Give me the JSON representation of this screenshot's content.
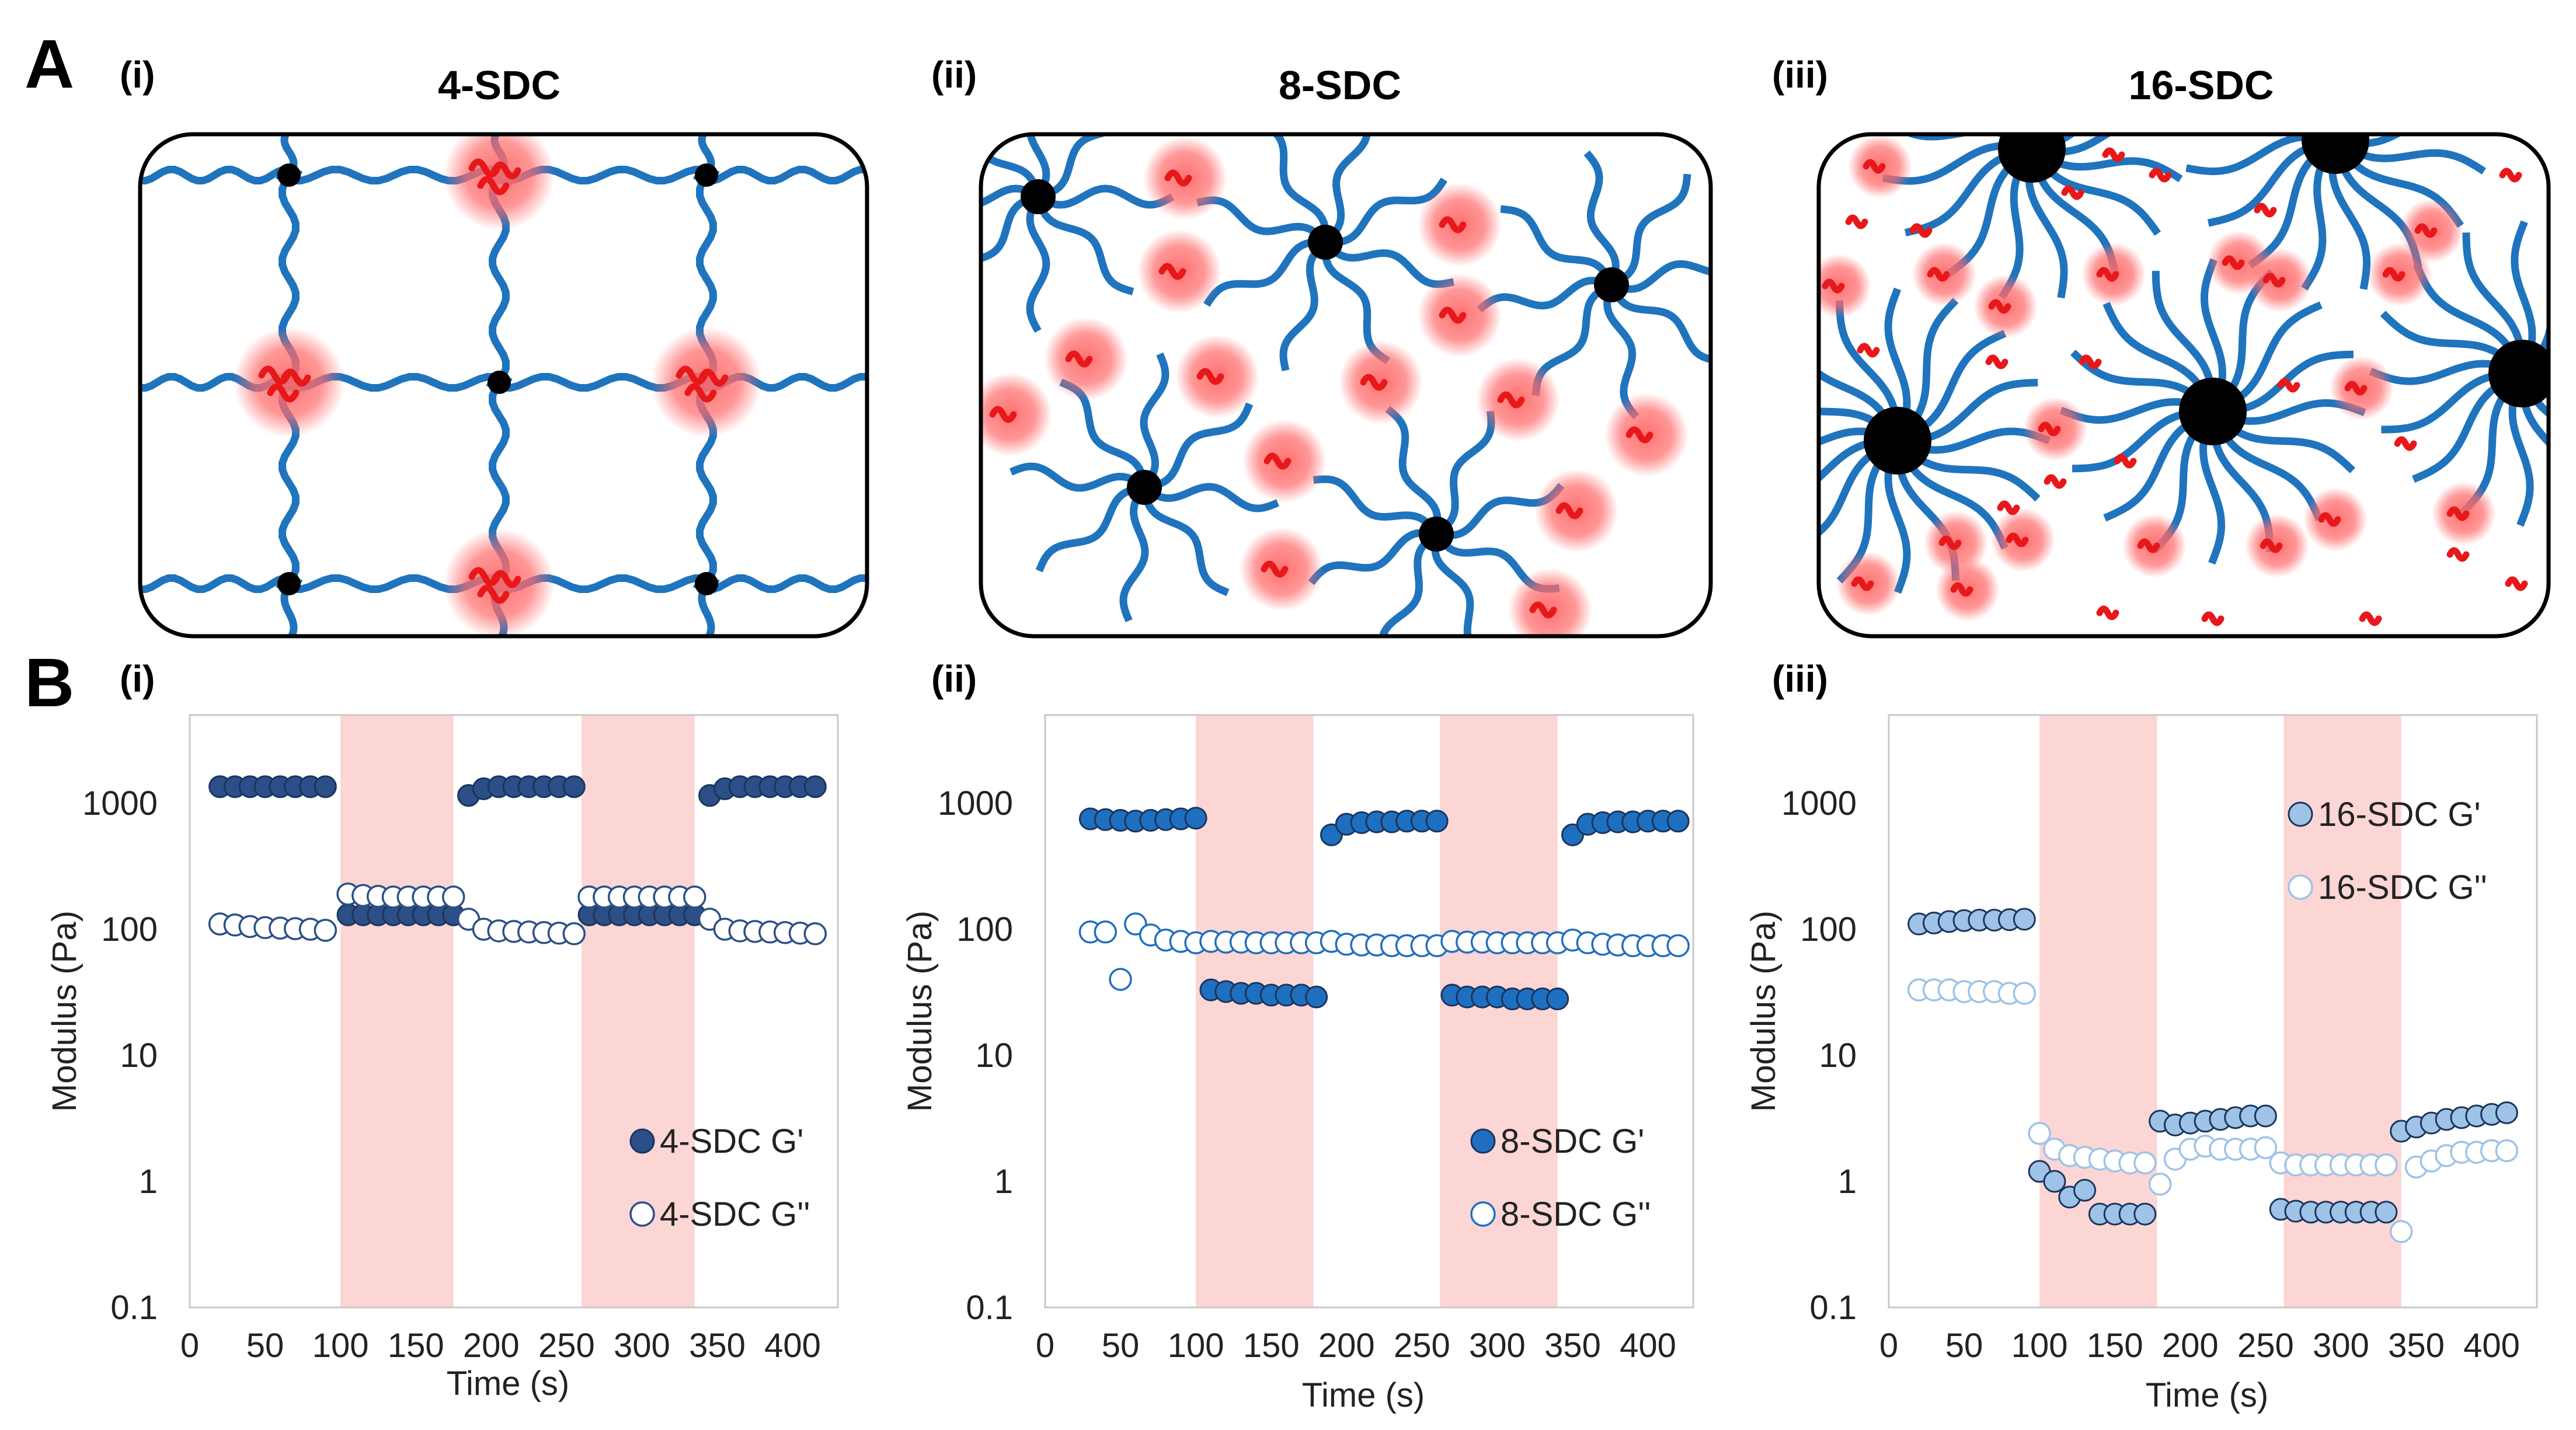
{
  "panels": {
    "A_label": "A",
    "B_label": "B",
    "sub_labels": [
      "(i)",
      "(ii)",
      "(iii)"
    ],
    "schematic_titles": [
      "4-SDC",
      "8-SDC",
      "16-SDC"
    ]
  },
  "colors": {
    "polymer": "#1f74bd",
    "junction": "#000000",
    "sticker": "#e8181a",
    "sticker_glow": "#ff6a6a",
    "shading": "#fcd5d5",
    "s4": "#2b4f86",
    "s8": "#1f6fc0",
    "s16": "#9ec3e6"
  },
  "chart_data": [
    {
      "type": "scatter",
      "title": "(i)",
      "xlabel": "Time (s)",
      "ylabel": "Modulus (Pa)",
      "xlim": [
        0,
        430
      ],
      "ylim": [
        0.1,
        5000
      ],
      "yscale": "log",
      "xticks": [
        "0",
        "50",
        "100",
        "150",
        "200",
        "250",
        "300",
        "350",
        "400"
      ],
      "yticks": [
        "0.1",
        "1",
        "10",
        "100",
        "1000"
      ],
      "shaded_intervals": [
        [
          100,
          175
        ],
        [
          260,
          335
        ]
      ],
      "legend_position": "lower-right",
      "series": [
        {
          "name": "4-SDC G'",
          "filled": true,
          "x": [
            20,
            30,
            40,
            50,
            60,
            70,
            80,
            90,
            105,
            115,
            125,
            135,
            145,
            155,
            165,
            175,
            185,
            195,
            205,
            215,
            225,
            235,
            245,
            255,
            265,
            275,
            285,
            295,
            305,
            315,
            325,
            335,
            345,
            355,
            365,
            375,
            385,
            395,
            405,
            415
          ],
          "y": [
            1350,
            1350,
            1350,
            1350,
            1350,
            1350,
            1350,
            1350,
            130,
            130,
            130,
            130,
            130,
            130,
            130,
            130,
            1150,
            1300,
            1350,
            1350,
            1350,
            1350,
            1350,
            1350,
            130,
            130,
            130,
            130,
            130,
            130,
            130,
            130,
            1150,
            1300,
            1350,
            1350,
            1350,
            1350,
            1350,
            1350
          ]
        },
        {
          "name": "4-SDC G''",
          "filled": false,
          "x": [
            20,
            30,
            40,
            50,
            60,
            70,
            80,
            90,
            105,
            115,
            125,
            135,
            145,
            155,
            165,
            175,
            185,
            195,
            205,
            215,
            225,
            235,
            245,
            255,
            265,
            275,
            285,
            295,
            305,
            315,
            325,
            335,
            345,
            355,
            365,
            375,
            385,
            395,
            405,
            415
          ],
          "y": [
            110,
            108,
            105,
            103,
            102,
            101,
            100,
            98,
            190,
            185,
            182,
            180,
            180,
            180,
            180,
            180,
            120,
            100,
            97,
            96,
            95,
            94,
            93,
            92,
            180,
            180,
            180,
            180,
            180,
            180,
            180,
            180,
            120,
            100,
            97,
            96,
            95,
            94,
            93,
            92
          ]
        }
      ]
    },
    {
      "type": "scatter",
      "title": "(ii)",
      "xlabel": "Time (s)",
      "ylabel": "Modulus (Pa)",
      "xlim": [
        0,
        430
      ],
      "ylim": [
        0.1,
        5000
      ],
      "yscale": "log",
      "xticks": [
        "0",
        "50",
        "100",
        "150",
        "200",
        "250",
        "300",
        "350",
        "400"
      ],
      "yticks": [
        "0.1",
        "1",
        "10",
        "100",
        "1000"
      ],
      "shaded_intervals": [
        [
          100,
          178
        ],
        [
          262,
          340
        ]
      ],
      "legend_position": "lower-right",
      "series": [
        {
          "name": "8-SDC G'",
          "filled": true,
          "x": [
            30,
            40,
            50,
            60,
            70,
            80,
            90,
            100,
            110,
            120,
            130,
            140,
            150,
            160,
            170,
            180,
            190,
            200,
            210,
            220,
            230,
            240,
            250,
            260,
            270,
            280,
            290,
            300,
            310,
            320,
            330,
            340,
            350,
            360,
            370,
            380,
            390,
            400,
            410,
            420
          ],
          "y": [
            750,
            740,
            730,
            720,
            730,
            740,
            750,
            760,
            33,
            32,
            31,
            31,
            30,
            30,
            30,
            29,
            560,
            680,
            700,
            710,
            710,
            720,
            720,
            720,
            30,
            29,
            29,
            29,
            28,
            28,
            28,
            28,
            560,
            680,
            700,
            710,
            710,
            720,
            720,
            720
          ]
        },
        {
          "name": "8-SDC G''",
          "filled": false,
          "x": [
            30,
            40,
            50,
            60,
            70,
            80,
            90,
            100,
            110,
            120,
            130,
            140,
            150,
            160,
            170,
            180,
            190,
            200,
            210,
            220,
            230,
            240,
            250,
            260,
            270,
            280,
            290,
            300,
            310,
            320,
            330,
            340,
            350,
            360,
            370,
            380,
            390,
            400,
            410,
            420
          ],
          "y": [
            95,
            95,
            40,
            110,
            90,
            82,
            80,
            78,
            80,
            79,
            79,
            78,
            78,
            78,
            78,
            78,
            80,
            76,
            75,
            75,
            74,
            74,
            74,
            74,
            80,
            79,
            79,
            78,
            78,
            78,
            78,
            78,
            82,
            78,
            76,
            75,
            74,
            74,
            74,
            74
          ]
        }
      ]
    },
    {
      "type": "scatter",
      "title": "(iii)",
      "xlabel": "Time (s)",
      "ylabel": "Modulus (Pa)",
      "xlim": [
        0,
        430
      ],
      "ylim": [
        0.1,
        5000
      ],
      "yscale": "log",
      "xticks": [
        "0",
        "50",
        "100",
        "150",
        "200",
        "250",
        "300",
        "350",
        "400"
      ],
      "yticks": [
        "0.1",
        "1",
        "10",
        "100",
        "1000"
      ],
      "shaded_intervals": [
        [
          100,
          178
        ],
        [
          262,
          340
        ]
      ],
      "legend_position": "upper-right",
      "series": [
        {
          "name": "16-SDC G'",
          "filled": true,
          "x": [
            20,
            30,
            40,
            50,
            60,
            70,
            80,
            90,
            100,
            110,
            120,
            130,
            140,
            150,
            160,
            170,
            180,
            190,
            200,
            210,
            220,
            230,
            240,
            250,
            260,
            270,
            280,
            290,
            300,
            310,
            320,
            330,
            340,
            350,
            360,
            370,
            380,
            390,
            400,
            410
          ],
          "y": [
            110,
            112,
            115,
            117,
            118,
            118,
            119,
            120,
            1.2,
            1.0,
            0.75,
            0.85,
            0.55,
            0.55,
            0.55,
            0.55,
            3.0,
            2.8,
            2.9,
            3.0,
            3.1,
            3.2,
            3.3,
            3.3,
            0.6,
            0.58,
            0.57,
            0.57,
            0.57,
            0.57,
            0.57,
            0.57,
            2.5,
            2.7,
            2.9,
            3.1,
            3.2,
            3.3,
            3.4,
            3.5
          ]
        },
        {
          "name": "16-SDC G''",
          "filled": false,
          "x": [
            20,
            30,
            40,
            50,
            60,
            70,
            80,
            90,
            100,
            110,
            120,
            130,
            140,
            150,
            160,
            170,
            180,
            190,
            200,
            210,
            220,
            230,
            240,
            250,
            260,
            270,
            280,
            290,
            300,
            310,
            320,
            330,
            340,
            350,
            360,
            370,
            380,
            390,
            400,
            410
          ],
          "y": [
            33,
            33,
            33,
            32,
            32,
            32,
            31,
            31,
            2.4,
            1.8,
            1.6,
            1.55,
            1.5,
            1.45,
            1.4,
            1.4,
            0.95,
            1.5,
            1.8,
            1.9,
            1.8,
            1.8,
            1.8,
            1.85,
            1.4,
            1.35,
            1.35,
            1.35,
            1.35,
            1.35,
            1.35,
            1.35,
            0.4,
            1.3,
            1.45,
            1.6,
            1.7,
            1.7,
            1.75,
            1.75
          ]
        }
      ]
    }
  ]
}
